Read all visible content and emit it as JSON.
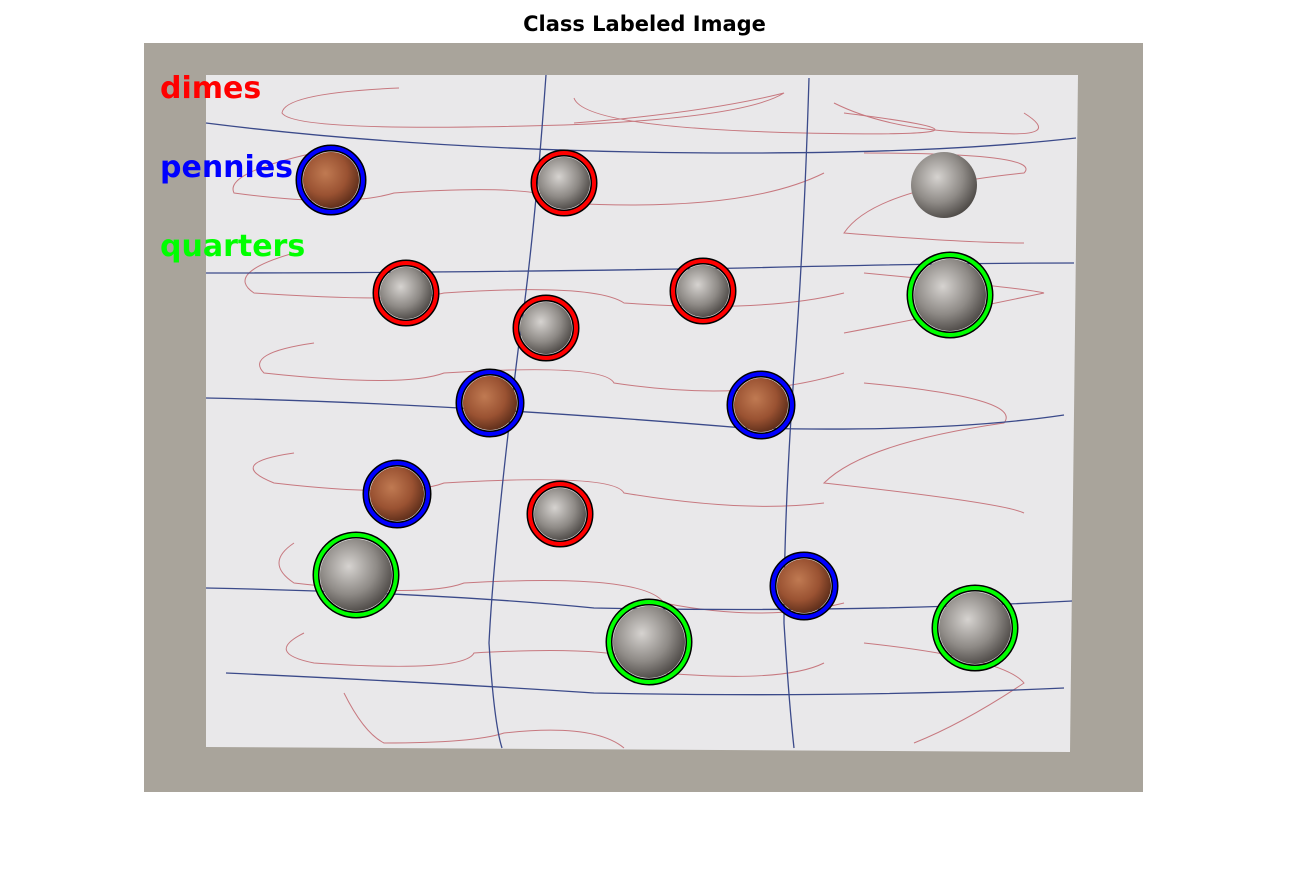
{
  "title": "Class Labeled Image",
  "legend": [
    {
      "label": "dimes",
      "color": "#ff0000"
    },
    {
      "label": "pennies",
      "color": "#0000ff"
    },
    {
      "label": "quarters",
      "color": "#00ff00"
    }
  ],
  "colors": {
    "background_board": "#a9a49b",
    "paper": "#e9e8ea",
    "penny_fill": "#9a5232",
    "silver_fill": "#8e8a86"
  },
  "coins": [
    {
      "class": "penny",
      "labeled": true
    },
    {
      "class": "dime",
      "labeled": true
    },
    {
      "class": "quarter",
      "labeled": false
    },
    {
      "class": "dime",
      "labeled": true
    },
    {
      "class": "dime",
      "labeled": true
    },
    {
      "class": "dime",
      "labeled": true
    },
    {
      "class": "quarter",
      "labeled": true
    },
    {
      "class": "penny",
      "labeled": true
    },
    {
      "class": "penny",
      "labeled": true
    },
    {
      "class": "penny",
      "labeled": true
    },
    {
      "class": "dime",
      "labeled": true
    },
    {
      "class": "quarter",
      "labeled": true
    },
    {
      "class": "penny",
      "labeled": true
    },
    {
      "class": "quarter",
      "labeled": true
    },
    {
      "class": "quarter",
      "labeled": true
    }
  ]
}
